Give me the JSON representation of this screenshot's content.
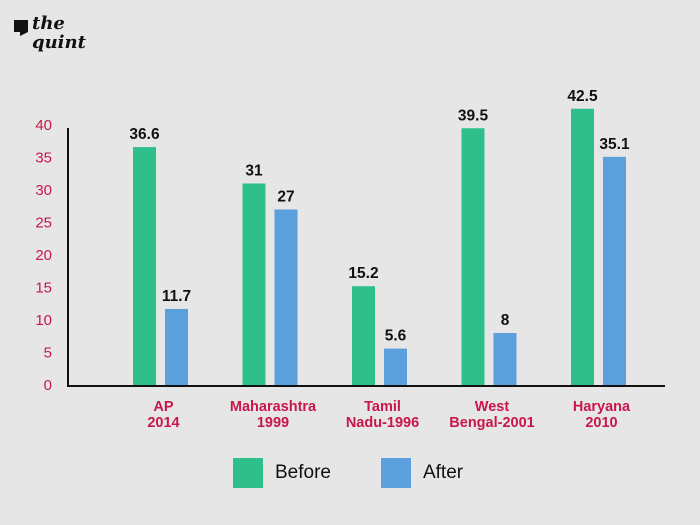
{
  "brand": {
    "name": "the quint"
  },
  "colors": {
    "before": "#2fbf8a",
    "after": "#5b9fdc",
    "tick": "#c8174a",
    "background": "#e6e6e6"
  },
  "chart_data": {
    "type": "bar",
    "categories": [
      "AP\n2014",
      "Maharashtra\n1999",
      "Tamil\nNadu-1996",
      "West\nBengal-2001",
      "Haryana\n2010"
    ],
    "series": [
      {
        "name": "Before",
        "values": [
          36.6,
          31,
          15.2,
          39.5,
          42.5
        ],
        "labels": [
          "36.6",
          "31",
          "15.2",
          "39.5",
          "42.5"
        ]
      },
      {
        "name": "After",
        "values": [
          11.7,
          27,
          5.6,
          8,
          35.1
        ],
        "labels": [
          "11.7",
          "27",
          "5.6",
          "8",
          "35.1"
        ]
      }
    ],
    "yticks": [
      "0",
      "5",
      "10",
      "15",
      "20",
      "25",
      "30",
      "35",
      "40"
    ],
    "ylim": [
      0,
      40
    ],
    "grid": false,
    "legend_position": "bottom"
  }
}
